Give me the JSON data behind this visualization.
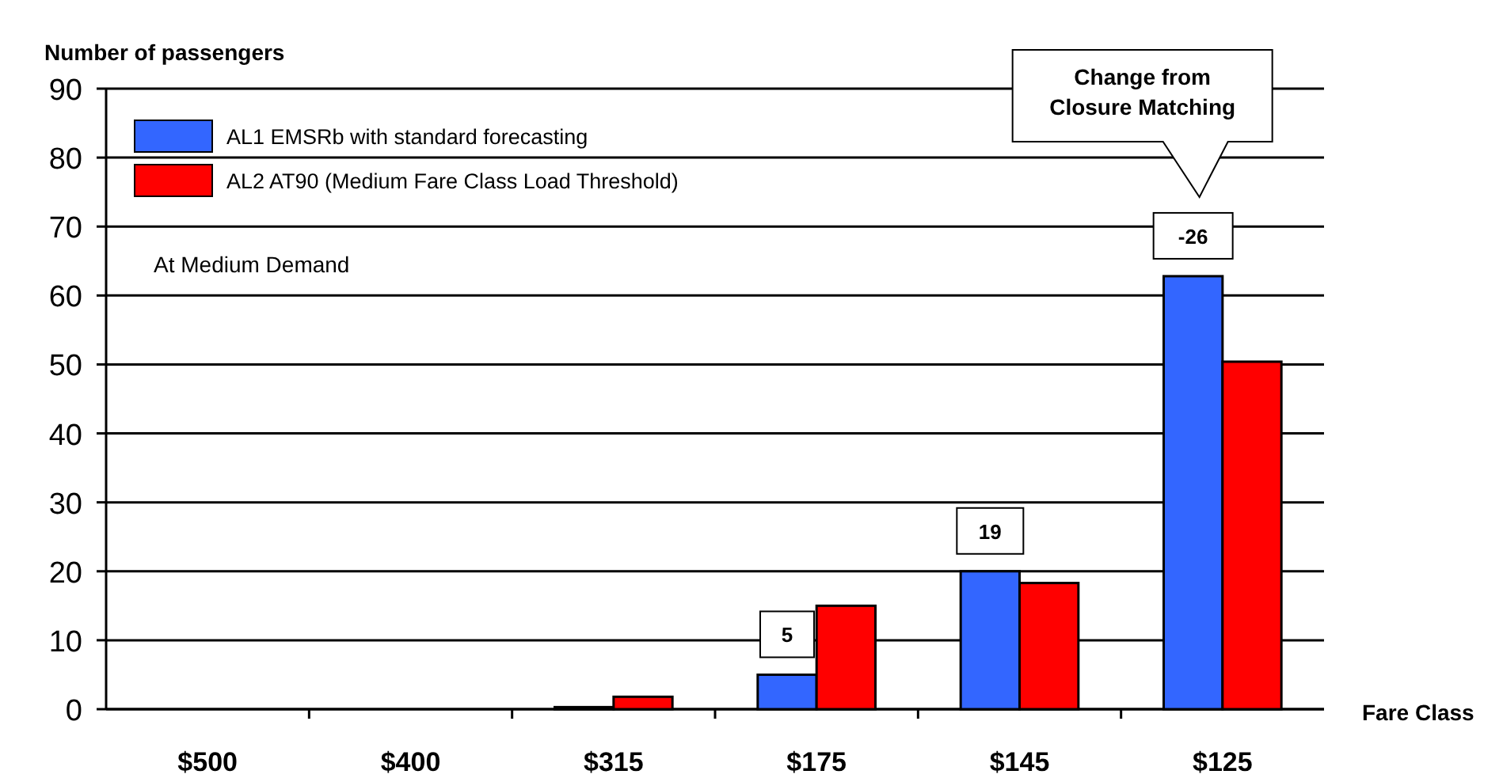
{
  "chart_data": {
    "type": "bar",
    "ylabel": "Number of passengers",
    "xlabel": "Fare Class",
    "categories": [
      "$500",
      "$400",
      "$315",
      "$175",
      "$145",
      "$125"
    ],
    "series": [
      {
        "name": "AL1 EMSRb with standard forecasting",
        "color": "#3366ff",
        "values": [
          0,
          0,
          0.3,
          5,
          20,
          62.8
        ]
      },
      {
        "name": "AL2 AT90 (Medium Fare Class Load Threshold)",
        "color": "#ff0000",
        "values": [
          0,
          0,
          1.8,
          15,
          18.3,
          50.4
        ]
      }
    ],
    "ylim": [
      0,
      90
    ],
    "yticks": [
      0,
      10,
      20,
      30,
      40,
      50,
      60,
      70,
      80,
      90
    ],
    "grid": "y",
    "legend": "top left",
    "annotations": [
      "At Medium Demand",
      "Change from Closure Matching",
      "5",
      "19",
      "-26"
    ]
  }
}
